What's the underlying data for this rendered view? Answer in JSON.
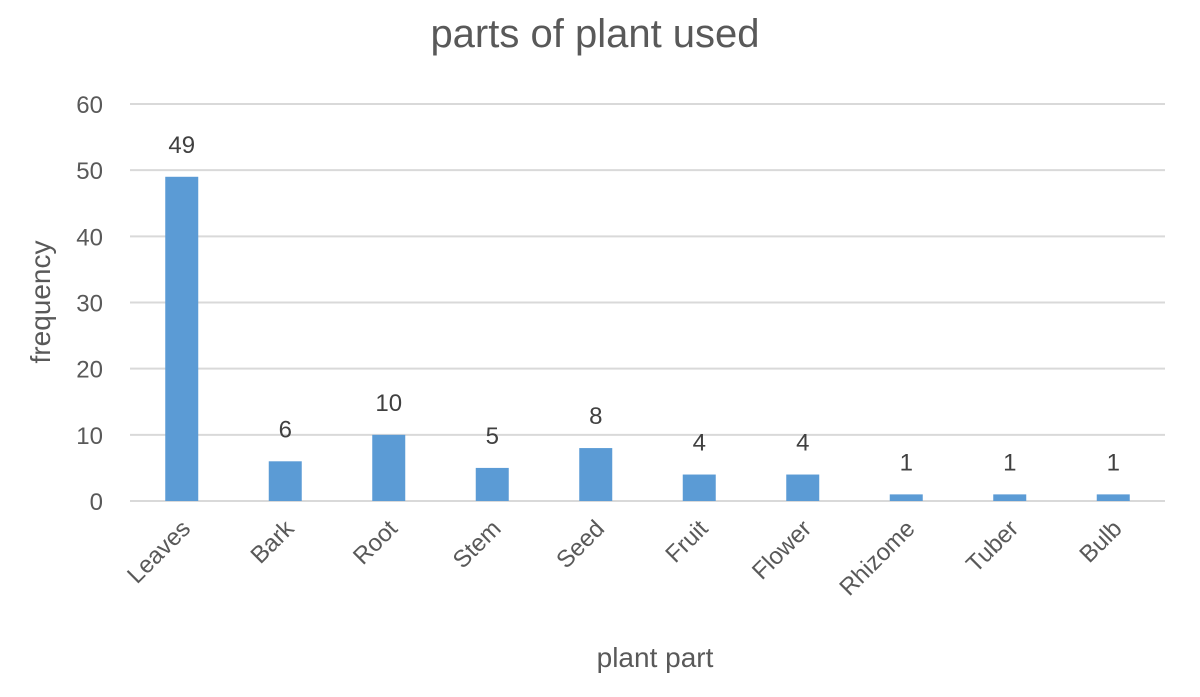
{
  "chart_data": {
    "type": "bar",
    "title": "parts of plant used",
    "xlabel": "plant part",
    "ylabel": "frequency",
    "categories": [
      "Leaves",
      "Bark",
      "Root",
      "Stem",
      "Seed",
      "Fruit",
      "Flower",
      "Rhizome",
      "Tuber",
      "Bulb"
    ],
    "values": [
      49,
      6,
      10,
      5,
      8,
      4,
      4,
      1,
      1,
      1
    ],
    "ylim": [
      0,
      60
    ],
    "yticks": [
      0,
      10,
      20,
      30,
      40,
      50,
      60
    ],
    "grid": true,
    "legend": "none",
    "bar_color": "#5b9bd5",
    "data_labels": true
  }
}
